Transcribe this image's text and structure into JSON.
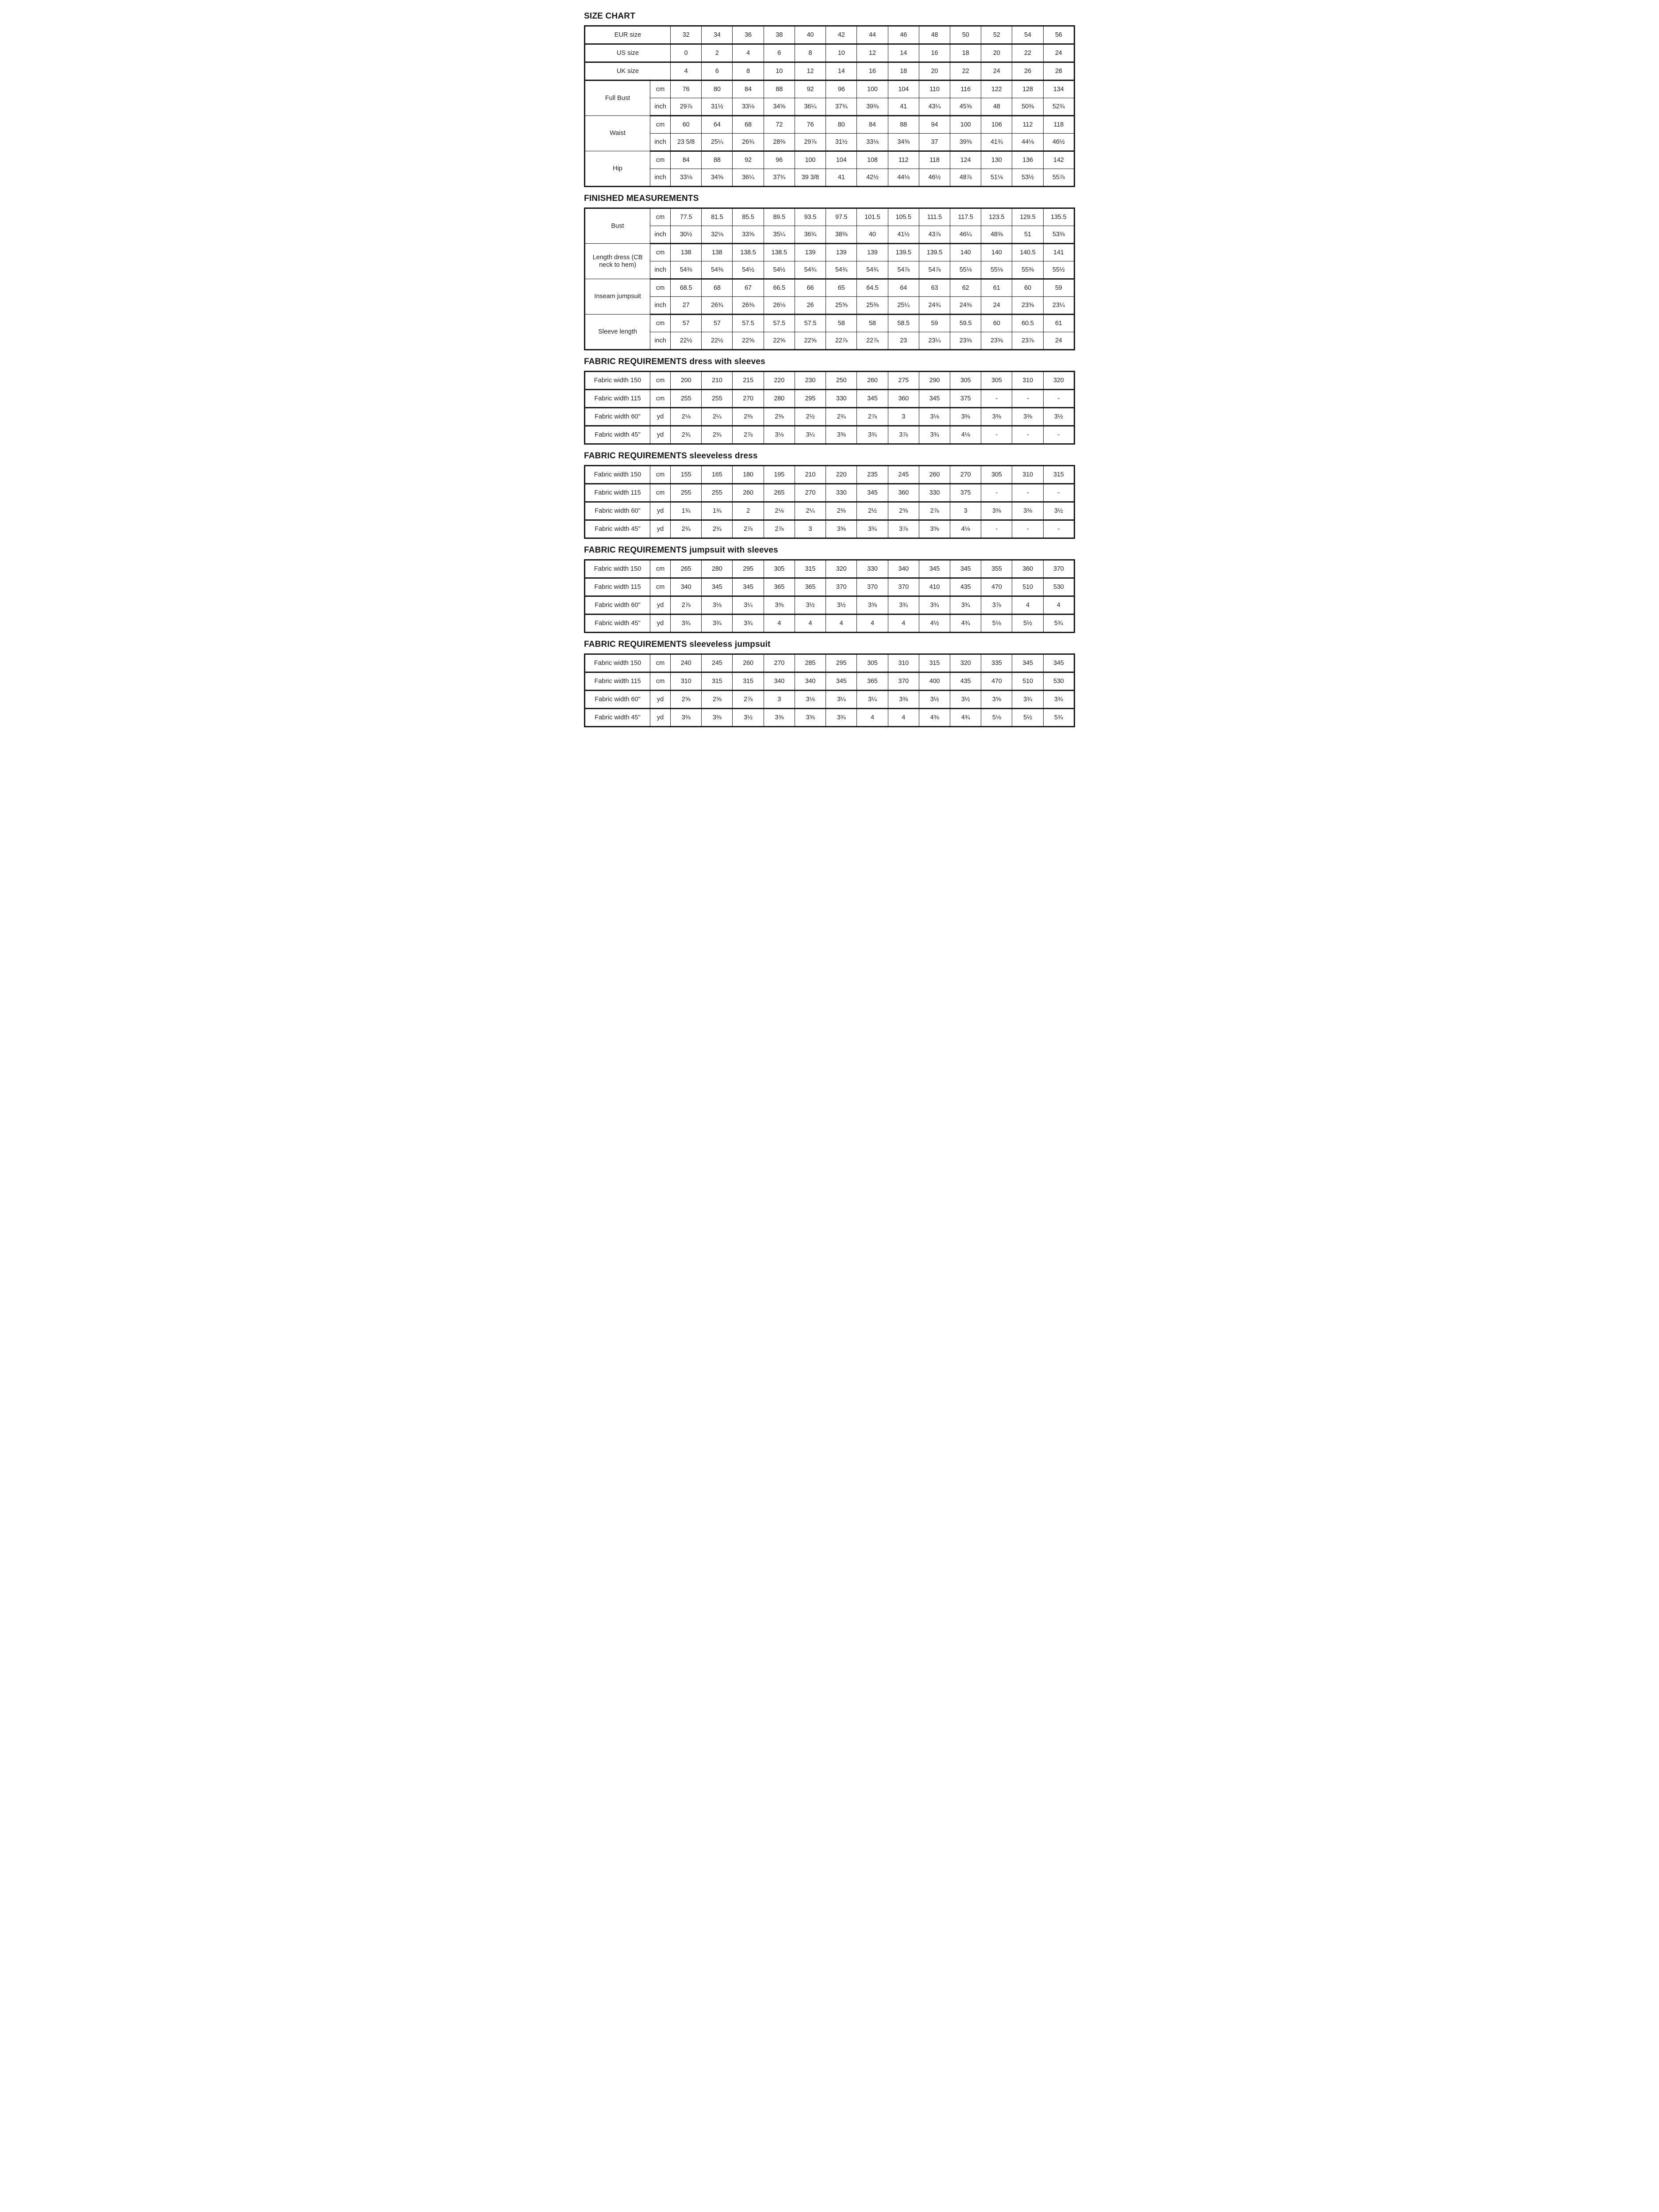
{
  "colors": {
    "ink": "#161616",
    "background": "#ffffff"
  },
  "sections": [
    {
      "id": "size-chart",
      "title": "SIZE CHART",
      "simple_rows": [
        {
          "label": "EUR size",
          "values": [
            "32",
            "34",
            "36",
            "38",
            "40",
            "42",
            "44",
            "46",
            "48",
            "50",
            "52",
            "54",
            "56"
          ]
        },
        {
          "label": "US size",
          "values": [
            "0",
            "2",
            "4",
            "6",
            "8",
            "10",
            "12",
            "14",
            "16",
            "18",
            "20",
            "22",
            "24"
          ]
        },
        {
          "label": "UK size",
          "values": [
            "4",
            "6",
            "8",
            "10",
            "12",
            "14",
            "16",
            "18",
            "20",
            "22",
            "24",
            "26",
            "28"
          ]
        }
      ],
      "groups": [
        {
          "label": "Full Bust",
          "rows": [
            {
              "unit": "cm",
              "values": [
                "76",
                "80",
                "84",
                "88",
                "92",
                "96",
                "100",
                "104",
                "110",
                "116",
                "122",
                "128",
                "134"
              ]
            },
            {
              "unit": "inch",
              "values": [
                "29⅞",
                "31½",
                "33⅛",
                "34⅝",
                "36¼",
                "37¾",
                "39⅜",
                "41",
                "43¼",
                "45⅝",
                "48",
                "50⅜",
                "52¾"
              ]
            }
          ]
        },
        {
          "label": "Waist",
          "rows": [
            {
              "unit": "cm",
              "values": [
                "60",
                "64",
                "68",
                "72",
                "76",
                "80",
                "84",
                "88",
                "94",
                "100",
                "106",
                "112",
                "118"
              ]
            },
            {
              "unit": "inch",
              "values": [
                "23 5/8",
                "25¼",
                "26¾",
                "28⅜",
                "29⅞",
                "31½",
                "33⅛",
                "34⅝",
                "37",
                "39⅜",
                "41¾",
                "44⅛",
                "46½"
              ]
            }
          ]
        },
        {
          "label": "Hip",
          "rows": [
            {
              "unit": "cm",
              "values": [
                "84",
                "88",
                "92",
                "96",
                "100",
                "104",
                "108",
                "112",
                "118",
                "124",
                "130",
                "136",
                "142"
              ]
            },
            {
              "unit": "inch",
              "values": [
                "33⅛",
                "34⅝",
                "36¼",
                "37¾",
                "39 3/8",
                "41",
                "42½",
                "44⅛",
                "46½",
                "48⅞",
                "51⅛",
                "53½",
                "55⅞"
              ]
            }
          ]
        }
      ]
    },
    {
      "id": "finished-measurements",
      "title": "FINISHED MEASUREMENTS",
      "groups": [
        {
          "label": "Bust",
          "rows": [
            {
              "unit": "cm",
              "values": [
                "77.5",
                "81.5",
                "85.5",
                "89.5",
                "93.5",
                "97.5",
                "101.5",
                "105.5",
                "111.5",
                "117.5",
                "123.5",
                "129.5",
                "135.5"
              ]
            },
            {
              "unit": "inch",
              "values": [
                "30½",
                "32⅛",
                "33⅝",
                "35¼",
                "36¾",
                "38⅜",
                "40",
                "41½",
                "43⅞",
                "46¼",
                "48⅝",
                "51",
                "53⅜"
              ]
            }
          ]
        },
        {
          "label": "Length dress (CB neck to hem)",
          "rows": [
            {
              "unit": "cm",
              "values": [
                "138",
                "138",
                "138.5",
                "138.5",
                "139",
                "139",
                "139",
                "139.5",
                "139.5",
                "140",
                "140",
                "140.5",
                "141"
              ]
            },
            {
              "unit": "inch",
              "values": [
                "54⅜",
                "54⅜",
                "54½",
                "54½",
                "54¾",
                "54¾",
                "54¾",
                "54⅞",
                "54⅞",
                "55⅛",
                "55⅛",
                "55⅜",
                "55½"
              ]
            }
          ]
        },
        {
          "label": "Inseam jumpsuit",
          "rows": [
            {
              "unit": "cm",
              "values": [
                "68.5",
                "68",
                "67",
                "66.5",
                "66",
                "65",
                "64.5",
                "64",
                "63",
                "62",
                "61",
                "60",
                "59"
              ]
            },
            {
              "unit": "inch",
              "values": [
                "27",
                "26¾",
                "26⅜",
                "26⅛",
                "26",
                "25⅝",
                "25⅜",
                "25¼",
                "24¾",
                "24⅜",
                "24",
                "23⅝",
                "23¼"
              ]
            }
          ]
        },
        {
          "label": "Sleeve length",
          "rows": [
            {
              "unit": "cm",
              "values": [
                "57",
                "57",
                "57.5",
                "57.5",
                "57.5",
                "58",
                "58",
                "58.5",
                "59",
                "59.5",
                "60",
                "60.5",
                "61"
              ]
            },
            {
              "unit": "inch",
              "values": [
                "22½",
                "22½",
                "22⅝",
                "22⅝",
                "22⅝",
                "22⅞",
                "22⅞",
                "23",
                "23¼",
                "23⅜",
                "23⅝",
                "23⅞",
                "24"
              ]
            }
          ]
        }
      ]
    },
    {
      "id": "fabric-dress-with-sleeves",
      "title": "FABRIC REQUIREMENTS dress with sleeves",
      "rows": [
        {
          "label": "Fabric width 150",
          "unit": "cm",
          "values": [
            "200",
            "210",
            "215",
            "220",
            "230",
            "250",
            "260",
            "275",
            "290",
            "305",
            "305",
            "310",
            "320"
          ]
        },
        {
          "label": "Fabric width 115",
          "unit": "cm",
          "values": [
            "255",
            "255",
            "270",
            "280",
            "295",
            "330",
            "345",
            "360",
            "345",
            "375",
            "-",
            "-",
            "-"
          ]
        },
        {
          "label": "Fabric width 60\"",
          "unit": "yd",
          "values": [
            "2⅛",
            "2¼",
            "2⅜",
            "2⅜",
            "2½",
            "2¾",
            "2⅞",
            "3",
            "3⅛",
            "3⅜",
            "3⅜",
            "3⅜",
            "3½"
          ]
        },
        {
          "label": "Fabric width 45\"",
          "unit": "yd",
          "values": [
            "2¾",
            "2¾",
            "2⅞",
            "3⅛",
            "3¼",
            "3⅝",
            "3¾",
            "3⅞",
            "3¾",
            "4⅛",
            "-",
            "-",
            "-"
          ]
        }
      ]
    },
    {
      "id": "fabric-sleeveless-dress",
      "title": "FABRIC REQUIREMENTS sleeveless dress",
      "rows": [
        {
          "label": "Fabric width 150",
          "unit": "cm",
          "values": [
            "155",
            "165",
            "180",
            "195",
            "210",
            "220",
            "235",
            "245",
            "260",
            "270",
            "305",
            "310",
            "315"
          ]
        },
        {
          "label": "Fabric width 115",
          "unit": "cm",
          "values": [
            "255",
            "255",
            "260",
            "265",
            "270",
            "330",
            "345",
            "360",
            "330",
            "375",
            "-",
            "-",
            "-"
          ]
        },
        {
          "label": "Fabric width 60\"",
          "unit": "yd",
          "values": [
            "1¾",
            "1¾",
            "2",
            "2⅛",
            "2¼",
            "2⅜",
            "2½",
            "2⅝",
            "2⅞",
            "3",
            "3⅜",
            "3⅜",
            "3½"
          ]
        },
        {
          "label": "Fabric width 45\"",
          "unit": "yd",
          "values": [
            "2¾",
            "2¾",
            "2⅞",
            "2⅞",
            "3",
            "3⅝",
            "3¾",
            "3⅞",
            "3⅝",
            "4⅛",
            "-",
            "-",
            "-"
          ]
        }
      ]
    },
    {
      "id": "fabric-jumpsuit-with-sleeves",
      "title": "FABRIC REQUIREMENTS jumpsuit with sleeves",
      "rows": [
        {
          "label": "Fabric width 150",
          "unit": "cm",
          "values": [
            "265",
            "280",
            "295",
            "305",
            "315",
            "320",
            "330",
            "340",
            "345",
            "345",
            "355",
            "360",
            "370"
          ]
        },
        {
          "label": "Fabric width 115",
          "unit": "cm",
          "values": [
            "340",
            "345",
            "345",
            "365",
            "365",
            "370",
            "370",
            "370",
            "410",
            "435",
            "470",
            "510",
            "530"
          ]
        },
        {
          "label": "Fabric width 60\"",
          "unit": "yd",
          "values": [
            "2⅞",
            "3⅛",
            "3¼",
            "3⅜",
            "3½",
            "3½",
            "3⅝",
            "3¾",
            "3¾",
            "3¾",
            "3⅞",
            "4",
            "4"
          ]
        },
        {
          "label": "Fabric width 45\"",
          "unit": "yd",
          "values": [
            "3¾",
            "3¾",
            "3¾",
            "4",
            "4",
            "4",
            "4",
            "4",
            "4½",
            "4¾",
            "5⅛",
            "5½",
            "5¾"
          ]
        }
      ]
    },
    {
      "id": "fabric-sleeveless-jumpsuit",
      "title": "FABRIC REQUIREMENTS sleeveless jumpsuit",
      "rows": [
        {
          "label": "Fabric width 150",
          "unit": "cm",
          "values": [
            "240",
            "245",
            "260",
            "270",
            "285",
            "295",
            "305",
            "310",
            "315",
            "320",
            "335",
            "345",
            "345"
          ]
        },
        {
          "label": "Fabric width 115",
          "unit": "cm",
          "values": [
            "310",
            "315",
            "315",
            "340",
            "340",
            "345",
            "365",
            "370",
            "400",
            "435",
            "470",
            "510",
            "530"
          ]
        },
        {
          "label": "Fabric width 60\"",
          "unit": "yd",
          "values": [
            "2⅝",
            "2⅝",
            "2⅞",
            "3",
            "3⅛",
            "3¼",
            "3¼",
            "3⅜",
            "3½",
            "3½",
            "3⅝",
            "3¾",
            "3¾"
          ]
        },
        {
          "label": "Fabric width 45\"",
          "unit": "yd",
          "values": [
            "3⅜",
            "3⅜",
            "3½",
            "3⅝",
            "3⅝",
            "3¾",
            "4",
            "4",
            "4⅜",
            "4¾",
            "5⅛",
            "5½",
            "5¾"
          ]
        }
      ]
    }
  ]
}
